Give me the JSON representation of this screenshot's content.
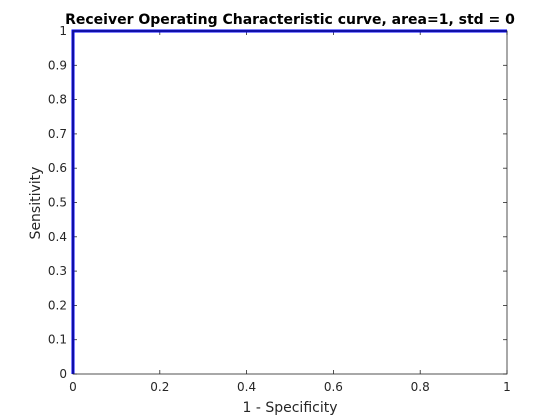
{
  "chart_data": {
    "type": "line",
    "title": "Receiver Operating Characteristic curve, area=1, std = 0",
    "xlabel": "1 - Specificity",
    "ylabel": "Sensitivity",
    "xlim": [
      0,
      1
    ],
    "ylim": [
      0,
      1
    ],
    "x_ticks": [
      0,
      0.2,
      0.4,
      0.6,
      0.8,
      1
    ],
    "x_tick_labels": [
      "0",
      "0.2",
      "0.4",
      "0.6",
      "0.8",
      "1"
    ],
    "y_ticks": [
      0,
      0.1,
      0.2,
      0.3,
      0.4,
      0.5,
      0.6,
      0.7,
      0.8,
      0.9,
      1
    ],
    "y_tick_labels": [
      "0",
      "0.1",
      "0.2",
      "0.3",
      "0.4",
      "0.5",
      "0.6",
      "0.7",
      "0.8",
      "0.9",
      "1"
    ],
    "grid": false,
    "box": true,
    "series": [
      {
        "x": [
          0,
          0,
          1
        ],
        "y": [
          0,
          1,
          1
        ],
        "color": "#0000ff"
      }
    ]
  }
}
